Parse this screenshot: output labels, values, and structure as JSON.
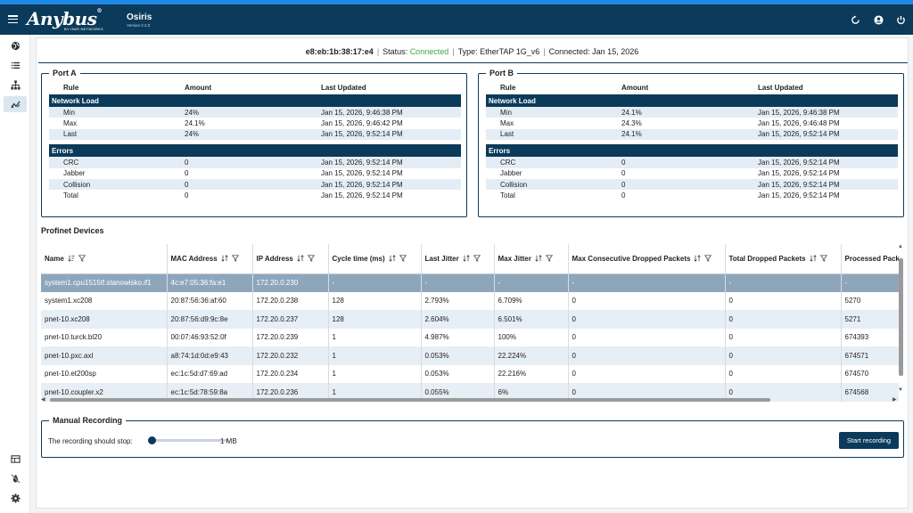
{
  "header": {
    "logo": "Anybus",
    "logo_reg": "®",
    "logo_sub": "BY HMS NETWORKS",
    "app_name": "Osiris",
    "version": "Version 2.2.0",
    "icons": [
      "restart-icon",
      "account-icon",
      "power-icon"
    ]
  },
  "sidebar": {
    "top_items": [
      "globe-icon",
      "list-icon",
      "network-tree-icon",
      "analytics-icon"
    ],
    "bottom_items": [
      "table-view-icon",
      "bug-off-icon",
      "settings-gear-icon"
    ],
    "active": "analytics-icon"
  },
  "status": {
    "mac": "e8:eb:1b:38:17:e4",
    "status_label": "Status:",
    "status_value": "Connected",
    "type": "Type: EtherTAP 1G_v6",
    "connected": "Connected: Jan 15, 2026",
    "colors": {
      "connected": "#3aa84a"
    }
  },
  "port_a": {
    "title": "Port A",
    "headers": {
      "rule": "Rule",
      "amount": "Amount",
      "updated": "Last Updated"
    },
    "network_load_label": "Network Load",
    "errors_label": "Errors",
    "load": [
      {
        "rule": "Min",
        "amount": "24%",
        "updated": "Jan 15, 2026, 9:46:38 PM"
      },
      {
        "rule": "Max",
        "amount": "24.1%",
        "updated": "Jan 15, 2026, 9:46:42 PM"
      },
      {
        "rule": "Last",
        "amount": "24%",
        "updated": "Jan 15, 2026, 9:52:14 PM"
      }
    ],
    "errors": [
      {
        "rule": "CRC",
        "amount": "0",
        "updated": "Jan 15, 2026, 9:52:14 PM"
      },
      {
        "rule": "Jabber",
        "amount": "0",
        "updated": "Jan 15, 2026, 9:52:14 PM"
      },
      {
        "rule": "Collision",
        "amount": "0",
        "updated": "Jan 15, 2026, 9:52:14 PM"
      },
      {
        "rule": "Total",
        "amount": "0",
        "updated": "Jan 15, 2026, 9:52:14 PM"
      }
    ]
  },
  "port_b": {
    "title": "Port B",
    "headers": {
      "rule": "Rule",
      "amount": "Amount",
      "updated": "Last Updated"
    },
    "network_load_label": "Network Load",
    "errors_label": "Errors",
    "load": [
      {
        "rule": "Min",
        "amount": "24.1%",
        "updated": "Jan 15, 2026, 9:46:38 PM"
      },
      {
        "rule": "Max",
        "amount": "24.3%",
        "updated": "Jan 15, 2026, 9:46:48 PM"
      },
      {
        "rule": "Last",
        "amount": "24.1%",
        "updated": "Jan 15, 2026, 9:52:14 PM"
      }
    ],
    "errors": [
      {
        "rule": "CRC",
        "amount": "0",
        "updated": "Jan 15, 2026, 9:52:14 PM"
      },
      {
        "rule": "Jabber",
        "amount": "0",
        "updated": "Jan 15, 2026, 9:52:14 PM"
      },
      {
        "rule": "Collision",
        "amount": "0",
        "updated": "Jan 15, 2026, 9:52:14 PM"
      },
      {
        "rule": "Total",
        "amount": "0",
        "updated": "Jan 15, 2026, 9:52:14 PM"
      }
    ]
  },
  "devices": {
    "title": "Profinet Devices",
    "columns": [
      {
        "label": "Name",
        "sort": "sort-desc-icon"
      },
      {
        "label": "MAC Address",
        "sort": "sort-icon"
      },
      {
        "label": "IP Address",
        "sort": "sort-icon"
      },
      {
        "label": "Cycle time (ms)",
        "sort": "sort-icon"
      },
      {
        "label": "Last Jitter",
        "sort": "sort-icon"
      },
      {
        "label": "Max Jitter",
        "sort": "sort-icon"
      },
      {
        "label": "Max Consecutive Dropped Packets",
        "sort": "sort-icon"
      },
      {
        "label": "Total Dropped Packets",
        "sort": "sort-icon"
      },
      {
        "label": "Processed Packets",
        "sort": "sort-icon"
      }
    ],
    "rows": [
      [
        "system1.cpu1515tf.stanowisko.if1",
        "4c:e7:05:36:fa:e1",
        "172.20.0.230",
        "-",
        "-",
        "-",
        "-",
        "-",
        "-"
      ],
      [
        "system1.xc208",
        "20:87:56:36:af:60",
        "172.20.0.238",
        "128",
        "2.793%",
        "6.709%",
        "0",
        "0",
        "5270"
      ],
      [
        "pnet-10.xc208",
        "20:87:56:d9:9c:8e",
        "172.20.0.237",
        "128",
        "2.604%",
        "6.501%",
        "0",
        "0",
        "5271"
      ],
      [
        "pnet-10.turck.bl20",
        "00:07:46:93:52:0f",
        "172.20.0.239",
        "1",
        "4.987%",
        "100%",
        "0",
        "0",
        "674393"
      ],
      [
        "pnet-10.pxc.axl",
        "a8:74:1d:0d:e9:43",
        "172.20.0.232",
        "1",
        "0.053%",
        "22.224%",
        "0",
        "0",
        "674571"
      ],
      [
        "pnet-10.et200sp",
        "ec:1c:5d:d7:69:ad",
        "172.20.0.234",
        "1",
        "0.053%",
        "22.216%",
        "0",
        "0",
        "674570"
      ],
      [
        "pnet-10.coupler.x2",
        "ec:1c:5d:78:59:8a",
        "172.20.0.236",
        "1",
        "0.055%",
        "6%",
        "0",
        "0",
        "674568"
      ]
    ],
    "selected_row": 0
  },
  "recording": {
    "title": "Manual Recording",
    "label": "The recording should stop:",
    "value": "1 MB",
    "slider_fraction": 0,
    "button": "Start recording"
  }
}
